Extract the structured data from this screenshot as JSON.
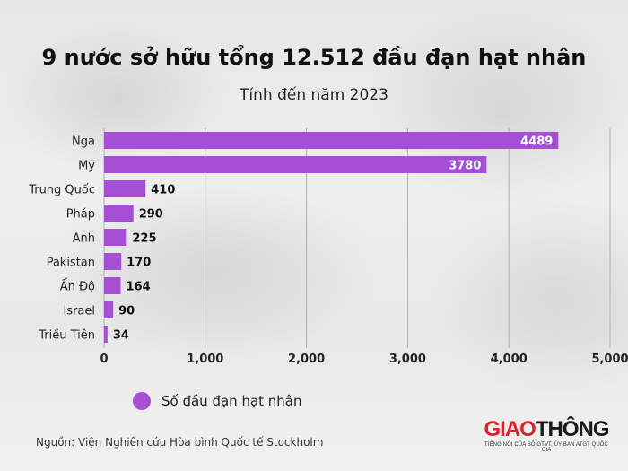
{
  "title": "9 nước sở hữu tổng 12.512 đầu đạn hạt nhân",
  "subtitle": "Tính đến năm 2023",
  "source": "Nguồn: Viện Nghiên cứu Hòa bình Quốc tế Stockholm",
  "logo": {
    "part1": "GIAO",
    "part2": "THÔNG",
    "tagline": "TIẾNG NÓI CỦA BỘ GTVT, ỦY BAN ATGT QUỐC GIA"
  },
  "colors": {
    "bar": "#a64fd4",
    "grid": "#b0b0b0",
    "logo_red": "#e41e26"
  },
  "chart_data": {
    "type": "bar",
    "orientation": "horizontal",
    "categories": [
      "Nga",
      "Mỹ",
      "Trung Quốc",
      "Pháp",
      "Anh",
      "Pakistan",
      "Ấn Độ",
      "Israel",
      "Triều Tiên"
    ],
    "series": [
      {
        "name": "Số đầu đạn hạt nhân",
        "values": [
          4489,
          3780,
          410,
          290,
          225,
          170,
          164,
          90,
          34
        ]
      }
    ],
    "xlim": [
      0,
      5000
    ],
    "xticks": [
      0,
      1000,
      2000,
      3000,
      4000,
      5000
    ],
    "xtick_labels": [
      "0",
      "1,000",
      "2,000",
      "3,000",
      "4,000",
      "5,000"
    ],
    "grid": true,
    "legend_position": "bottom-left"
  }
}
